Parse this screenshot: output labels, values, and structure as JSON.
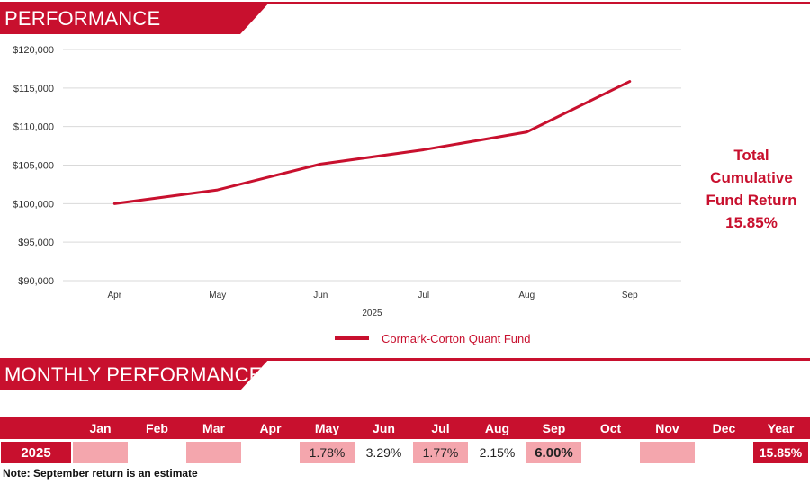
{
  "sections": {
    "performance_title": "PERFORMANCE",
    "monthly_title": "MONTHLY PERFORMANCE"
  },
  "cumulative": {
    "line1": "Total",
    "line2": "Cumulative",
    "line3": "Fund Return",
    "value": "15.85%"
  },
  "chart_data": {
    "type": "line",
    "categories": [
      "Apr",
      "May",
      "Jun",
      "Jul",
      "Aug",
      "Sep"
    ],
    "xlabel": "2025",
    "ylabel": "",
    "ylim": [
      90000,
      120000
    ],
    "yticks": [
      90000,
      95000,
      100000,
      105000,
      110000,
      115000,
      120000
    ],
    "ytick_labels": [
      "$90,000",
      "$95,000",
      "$100,000",
      "$105,000",
      "$110,000",
      "$115,000",
      "$120,000"
    ],
    "grid": true,
    "legend_position": "bottom",
    "series": [
      {
        "name": "Cormark-Corton Quant Fund",
        "color": "#c8102e",
        "values": [
          100000,
          101780,
          105130,
          106990,
          109290,
          115850
        ]
      }
    ]
  },
  "table": {
    "headers": [
      "",
      "Jan",
      "Feb",
      "Mar",
      "Apr",
      "May",
      "Jun",
      "Jul",
      "Aug",
      "Sep",
      "Oct",
      "Nov",
      "Dec",
      "Year"
    ],
    "rows": [
      {
        "year": "2025",
        "cells": [
          "",
          "",
          "",
          "",
          "1.78%",
          "3.29%",
          "1.77%",
          "2.15%",
          "6.00%",
          "",
          "",
          "",
          "15.85%"
        ],
        "pink": [
          true,
          false,
          true,
          false,
          true,
          false,
          true,
          false,
          true,
          false,
          true,
          false,
          false
        ],
        "bold": [
          false,
          false,
          false,
          false,
          false,
          false,
          false,
          false,
          true,
          false,
          false,
          false,
          true
        ]
      }
    ]
  },
  "note": "Note: September return is an estimate",
  "colors": {
    "brand": "#c8102e",
    "pink": "#f4a6ad",
    "grid": "#d9d9d9"
  }
}
